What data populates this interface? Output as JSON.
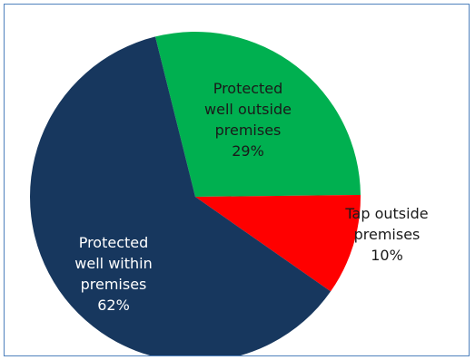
{
  "chart_data": {
    "type": "pie",
    "title": "",
    "start_angle_deg": -14,
    "direction": "clockwise",
    "slices": [
      {
        "label_lines": [
          "Protected",
          "well outside",
          "premises",
          "29%"
        ],
        "value": 29,
        "color": "#00b050",
        "label_color": "#1a1a1a"
      },
      {
        "label_lines": [
          "Tap outside",
          "premises",
          "10%"
        ],
        "value": 10,
        "color": "#ff0000",
        "label_color": "#1a1a1a"
      },
      {
        "label_lines": [
          "Protected",
          "well within",
          "premises",
          "62%"
        ],
        "value": 62,
        "color": "#17375e",
        "label_color": "#ffffff"
      }
    ]
  }
}
